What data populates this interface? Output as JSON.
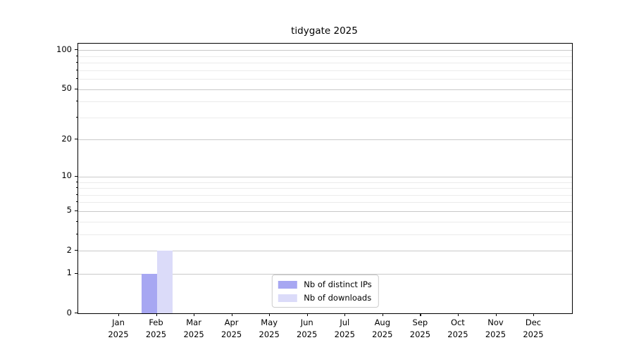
{
  "chart_data": {
    "type": "bar",
    "title": "tidygate 2025",
    "categories": [
      {
        "month": "Jan",
        "year": "2025"
      },
      {
        "month": "Feb",
        "year": "2025"
      },
      {
        "month": "Mar",
        "year": "2025"
      },
      {
        "month": "Apr",
        "year": "2025"
      },
      {
        "month": "May",
        "year": "2025"
      },
      {
        "month": "Jun",
        "year": "2025"
      },
      {
        "month": "Jul",
        "year": "2025"
      },
      {
        "month": "Aug",
        "year": "2025"
      },
      {
        "month": "Sep",
        "year": "2025"
      },
      {
        "month": "Oct",
        "year": "2025"
      },
      {
        "month": "Nov",
        "year": "2025"
      },
      {
        "month": "Dec",
        "year": "2025"
      }
    ],
    "series": [
      {
        "name": "Nb of distinct IPs",
        "color": "#a7a7f2",
        "values": [
          0,
          1,
          0,
          0,
          0,
          0,
          0,
          0,
          0,
          0,
          0,
          0
        ]
      },
      {
        "name": "Nb of downloads",
        "color": "#dbdbf9",
        "values": [
          0,
          2,
          0,
          0,
          0,
          0,
          0,
          0,
          0,
          0,
          0,
          0
        ]
      }
    ],
    "y_axis": {
      "scale": "log10(value+1)",
      "ticks": [
        0,
        1,
        2,
        5,
        10,
        20,
        50,
        100
      ],
      "minor_ticks": [
        3,
        4,
        6,
        7,
        8,
        9,
        30,
        40,
        60,
        70,
        80,
        90
      ],
      "max": 112
    },
    "grid": {
      "major_color": "#c9c9c9",
      "minor_color": "#ebebeb"
    },
    "legend": {
      "position": "lower-center-inside"
    },
    "xlabel": "",
    "ylabel": ""
  }
}
